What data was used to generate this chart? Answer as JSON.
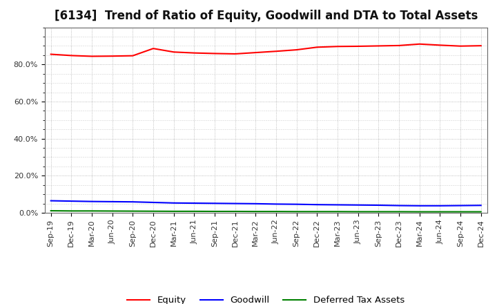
{
  "title": "[6134]  Trend of Ratio of Equity, Goodwill and DTA to Total Assets",
  "x_labels": [
    "Sep-19",
    "Dec-19",
    "Mar-20",
    "Jun-20",
    "Sep-20",
    "Dec-20",
    "Mar-21",
    "Jun-21",
    "Sep-21",
    "Dec-21",
    "Mar-22",
    "Jun-22",
    "Sep-22",
    "Dec-22",
    "Mar-23",
    "Jun-23",
    "Sep-23",
    "Dec-23",
    "Mar-24",
    "Jun-24",
    "Sep-24",
    "Dec-24"
  ],
  "equity": [
    85.5,
    84.8,
    84.4,
    84.5,
    84.7,
    88.6,
    86.7,
    86.2,
    85.9,
    85.7,
    86.4,
    87.1,
    87.9,
    89.3,
    89.7,
    89.8,
    90.0,
    90.2,
    91.0,
    90.4,
    89.9,
    90.1
  ],
  "goodwill": [
    6.5,
    6.3,
    6.1,
    6.0,
    5.9,
    5.6,
    5.3,
    5.2,
    5.1,
    5.0,
    4.9,
    4.7,
    4.6,
    4.4,
    4.3,
    4.2,
    4.1,
    3.9,
    3.8,
    3.8,
    3.9,
    4.0
  ],
  "dta": [
    1.1,
    1.0,
    1.0,
    0.95,
    0.9,
    0.85,
    0.8,
    0.8,
    0.75,
    0.75,
    0.7,
    0.7,
    0.65,
    0.65,
    0.65,
    0.6,
    0.6,
    0.6,
    0.55,
    0.55,
    0.55,
    0.55
  ],
  "equity_color": "#FF0000",
  "goodwill_color": "#0000FF",
  "dta_color": "#008000",
  "background_color": "#FFFFFF",
  "plot_bg_color": "#FFFFFF",
  "grid_color": "#AAAAAA",
  "ylim": [
    0,
    100
  ],
  "yticks": [
    0,
    20,
    40,
    60,
    80
  ],
  "ytick_labels": [
    "0.0%",
    "20.0%",
    "40.0%",
    "60.0%",
    "80.0%"
  ],
  "legend_labels": [
    "Equity",
    "Goodwill",
    "Deferred Tax Assets"
  ],
  "title_fontsize": 12,
  "tick_fontsize": 8,
  "legend_fontsize": 9.5
}
